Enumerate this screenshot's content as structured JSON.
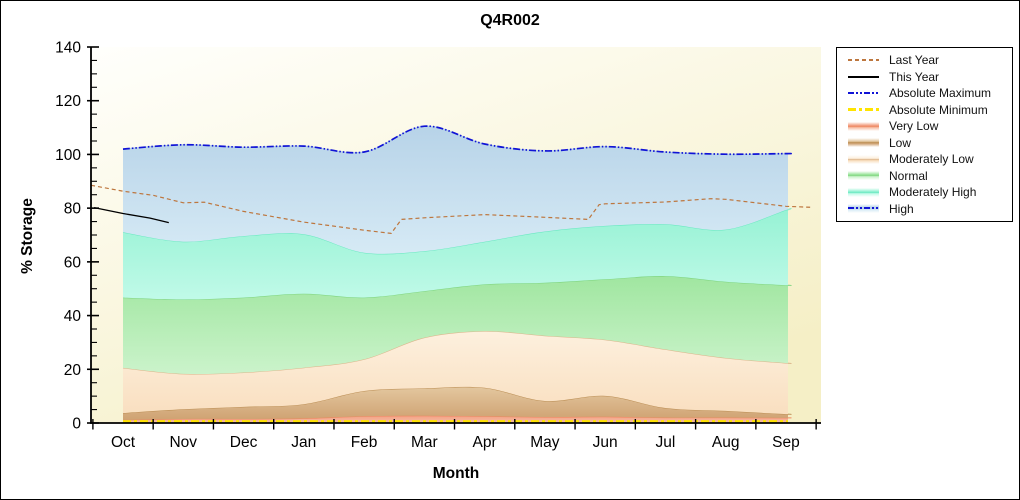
{
  "chart_data": {
    "type": "area",
    "title": "Q4R002",
    "xlabel": "Month",
    "ylabel": "% Storage",
    "ylim": [
      0,
      140
    ],
    "y_major_step": 20,
    "y_minor_step": 5,
    "grid": false,
    "legend_position": "outside-right",
    "categories": [
      "Oct",
      "Nov",
      "Dec",
      "Jan",
      "Feb",
      "Mar",
      "Apr",
      "May",
      "Jun",
      "Jul",
      "Aug",
      "Sep"
    ],
    "boundaries": {
      "very_low_top": [
        1.1,
        1.5,
        1.5,
        1.7,
        2.5,
        2.7,
        2.5,
        2.2,
        2.3,
        2.0,
        2.0,
        1.9
      ],
      "low_top": [
        3.7,
        5.1,
        6.0,
        7.0,
        11.9,
        12.9,
        13.1,
        8.2,
        10.1,
        5.6,
        4.5,
        3.3
      ],
      "mod_low_top": [
        20.5,
        18.3,
        18.8,
        20.6,
        23.7,
        31.8,
        34.2,
        32.5,
        31.0,
        27.4,
        24.2,
        22.3
      ],
      "normal_top": [
        46.7,
        46.0,
        46.7,
        48.1,
        46.7,
        49.1,
        51.6,
        52.2,
        53.5,
        54.7,
        52.6,
        51.3
      ],
      "mod_high_top": [
        71.0,
        67.5,
        69.6,
        70.3,
        63.4,
        64.0,
        67.5,
        71.3,
        73.4,
        74.0,
        72.0,
        79.3
      ],
      "abs_max": [
        102.0,
        103.6,
        102.7,
        103.1,
        100.9,
        110.5,
        103.9,
        101.3,
        102.9,
        100.9,
        100.1,
        100.3
      ]
    },
    "bands": [
      {
        "name": "Very Low",
        "lower": "zero",
        "upper": "very_low_top",
        "fill_top": "#f2a083",
        "fill_bottom": "#f8bfa6",
        "edge": "#ee8760"
      },
      {
        "name": "Low",
        "lower": "very_low_top",
        "upper": "low_top",
        "fill_top": "#e3c79f",
        "fill_bottom": "#cfa272",
        "edge": "#bb8e54"
      },
      {
        "name": "Moderately Low",
        "lower": "low_top",
        "upper": "mod_low_top",
        "fill_top": "#fdf0de",
        "fill_bottom": "#f9dfc0",
        "edge": "#dcb48a"
      },
      {
        "name": "Normal",
        "lower": "mod_low_top",
        "upper": "normal_top",
        "fill_top": "#a0e6a0",
        "fill_bottom": "#cbf3cb",
        "edge": "#7ed47e"
      },
      {
        "name": "Moderately High",
        "lower": "normal_top",
        "upper": "mod_high_top",
        "fill_top": "#96f2d4",
        "fill_bottom": "#c0fae8",
        "edge": "#66e8c0"
      },
      {
        "name": "High",
        "lower": "mod_high_top",
        "upper": "abs_max",
        "fill_top": "#b7d3e8",
        "fill_bottom": "#d6eaf5",
        "edge": "#b0cfe5"
      }
    ],
    "lines": [
      {
        "name": "Last Year",
        "color": "#bd763e",
        "width": 1.2,
        "dash": "4,3",
        "points": [
          [
            -0.53,
            88.5
          ],
          [
            0,
            86.3
          ],
          [
            0.5,
            84.8
          ],
          [
            1,
            82.0
          ],
          [
            1.35,
            82.2
          ],
          [
            2,
            78.8
          ],
          [
            3,
            74.8
          ],
          [
            4,
            71.8
          ],
          [
            4.45,
            70.6
          ],
          [
            4.62,
            75.8
          ],
          [
            5,
            76.4
          ],
          [
            6,
            77.6
          ],
          [
            7,
            76.6
          ],
          [
            7.72,
            75.8
          ],
          [
            7.9,
            81.3
          ],
          [
            8,
            81.6
          ],
          [
            9,
            82.3
          ],
          [
            9.75,
            83.5
          ],
          [
            10,
            83.3
          ],
          [
            11,
            80.7
          ],
          [
            11.42,
            80.3
          ]
        ]
      },
      {
        "name": "This Year",
        "color": "#000000",
        "width": 1.3,
        "dash": "",
        "points": [
          [
            -0.48,
            80.2
          ],
          [
            0,
            78.0
          ],
          [
            0.45,
            76.3
          ],
          [
            0.76,
            74.6
          ]
        ]
      },
      {
        "name": "Absolute Maximum",
        "color": "#1013d6",
        "width": 1.7,
        "dash": "7,2,1.5,2,1.5,2",
        "boundary": "abs_max"
      },
      {
        "name": "Absolute Minimum",
        "color": "#ffe400",
        "width": 2.6,
        "dash": "8,3,3,3",
        "value": 0.6
      }
    ],
    "legend": {
      "items": [
        {
          "label": "Last Year",
          "type": "line",
          "color": "#bd763e",
          "dash": "dashed"
        },
        {
          "label": "This Year",
          "type": "line",
          "color": "#000000",
          "dash": "solid"
        },
        {
          "label": "Absolute Maximum",
          "type": "line",
          "color": "#1013d6",
          "dash": "dashdotdot"
        },
        {
          "label": "Absolute Minimum",
          "type": "line",
          "color": "#ffe400",
          "dash": "dashdot",
          "thick": true
        },
        {
          "label": "Very Low",
          "type": "band",
          "band": "Very Low"
        },
        {
          "label": "Low",
          "type": "band",
          "band": "Low"
        },
        {
          "label": "Moderately Low",
          "type": "band",
          "band": "Moderately Low"
        },
        {
          "label": "Normal",
          "type": "band",
          "band": "Normal"
        },
        {
          "label": "Moderately High",
          "type": "band",
          "band": "Moderately High"
        },
        {
          "label": "High",
          "type": "band",
          "band": "High",
          "line_overlay": {
            "color": "#1013d6",
            "dash": "dashdotdot"
          }
        }
      ]
    }
  }
}
